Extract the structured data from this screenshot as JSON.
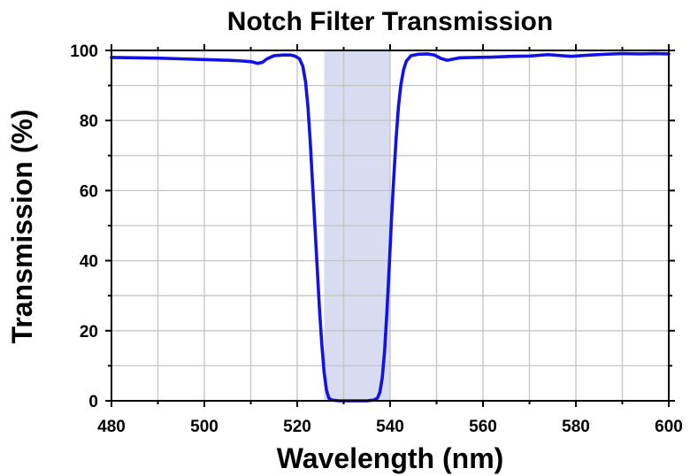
{
  "chart_data": {
    "type": "line",
    "title": "Notch Filter Transmission",
    "xlabel": "Wavelength (nm)",
    "ylabel": "Transmission (%)",
    "xlim": [
      480,
      600
    ],
    "ylim": [
      0,
      100
    ],
    "xticks": [
      480,
      500,
      520,
      540,
      560,
      580,
      600
    ],
    "yticks": [
      0,
      20,
      40,
      60,
      80,
      100
    ],
    "x_minor_step": 10,
    "y_minor_step": 10,
    "grid": true,
    "highlight_band": {
      "x": [
        525.8,
        540.0
      ],
      "color": "#d7dcf0"
    },
    "series": [
      {
        "color": "#1212e6",
        "points": [
          [
            480,
            98.0
          ],
          [
            485,
            97.9
          ],
          [
            490,
            97.8
          ],
          [
            495,
            97.6
          ],
          [
            500,
            97.4
          ],
          [
            505,
            97.2
          ],
          [
            508,
            97.0
          ],
          [
            510,
            96.8
          ],
          [
            511.5,
            96.3
          ],
          [
            512.5,
            96.6
          ],
          [
            513.5,
            97.6
          ],
          [
            515,
            98.5
          ],
          [
            517,
            98.7
          ],
          [
            518.5,
            98.7
          ],
          [
            519.5,
            98.4
          ],
          [
            520.5,
            97.6
          ],
          [
            521.2,
            95.5
          ],
          [
            521.8,
            91.0
          ],
          [
            522.3,
            84.0
          ],
          [
            522.8,
            74.0
          ],
          [
            523.3,
            62.0
          ],
          [
            523.8,
            50.0
          ],
          [
            524.3,
            38.0
          ],
          [
            524.8,
            26.0
          ],
          [
            525.3,
            16.0
          ],
          [
            525.8,
            8.0
          ],
          [
            526.3,
            3.0
          ],
          [
            526.8,
            0.8
          ],
          [
            527.5,
            0.2
          ],
          [
            529,
            0.0
          ],
          [
            531,
            0.0
          ],
          [
            533,
            0.0
          ],
          [
            535,
            0.0
          ],
          [
            536.5,
            0.2
          ],
          [
            537.3,
            0.8
          ],
          [
            537.8,
            2.5
          ],
          [
            538.3,
            6.5
          ],
          [
            538.8,
            14.0
          ],
          [
            539.3,
            25.0
          ],
          [
            539.8,
            38.0
          ],
          [
            540.3,
            52.0
          ],
          [
            540.8,
            64.0
          ],
          [
            541.3,
            75.0
          ],
          [
            541.8,
            84.0
          ],
          [
            542.3,
            90.0
          ],
          [
            542.9,
            94.5
          ],
          [
            543.5,
            97.0
          ],
          [
            544.5,
            98.5
          ],
          [
            546,
            98.9
          ],
          [
            548,
            99.0
          ],
          [
            549.5,
            98.7
          ],
          [
            551,
            97.7
          ],
          [
            552.3,
            97.2
          ],
          [
            553.5,
            97.5
          ],
          [
            555,
            97.9
          ],
          [
            558,
            98.0
          ],
          [
            562,
            98.1
          ],
          [
            566,
            98.3
          ],
          [
            570,
            98.4
          ],
          [
            574,
            98.8
          ],
          [
            577,
            98.5
          ],
          [
            579,
            98.3
          ],
          [
            582,
            98.6
          ],
          [
            586,
            98.9
          ],
          [
            590,
            99.1
          ],
          [
            594,
            99.0
          ],
          [
            597,
            99.1
          ],
          [
            600,
            99.0
          ]
        ]
      }
    ]
  }
}
